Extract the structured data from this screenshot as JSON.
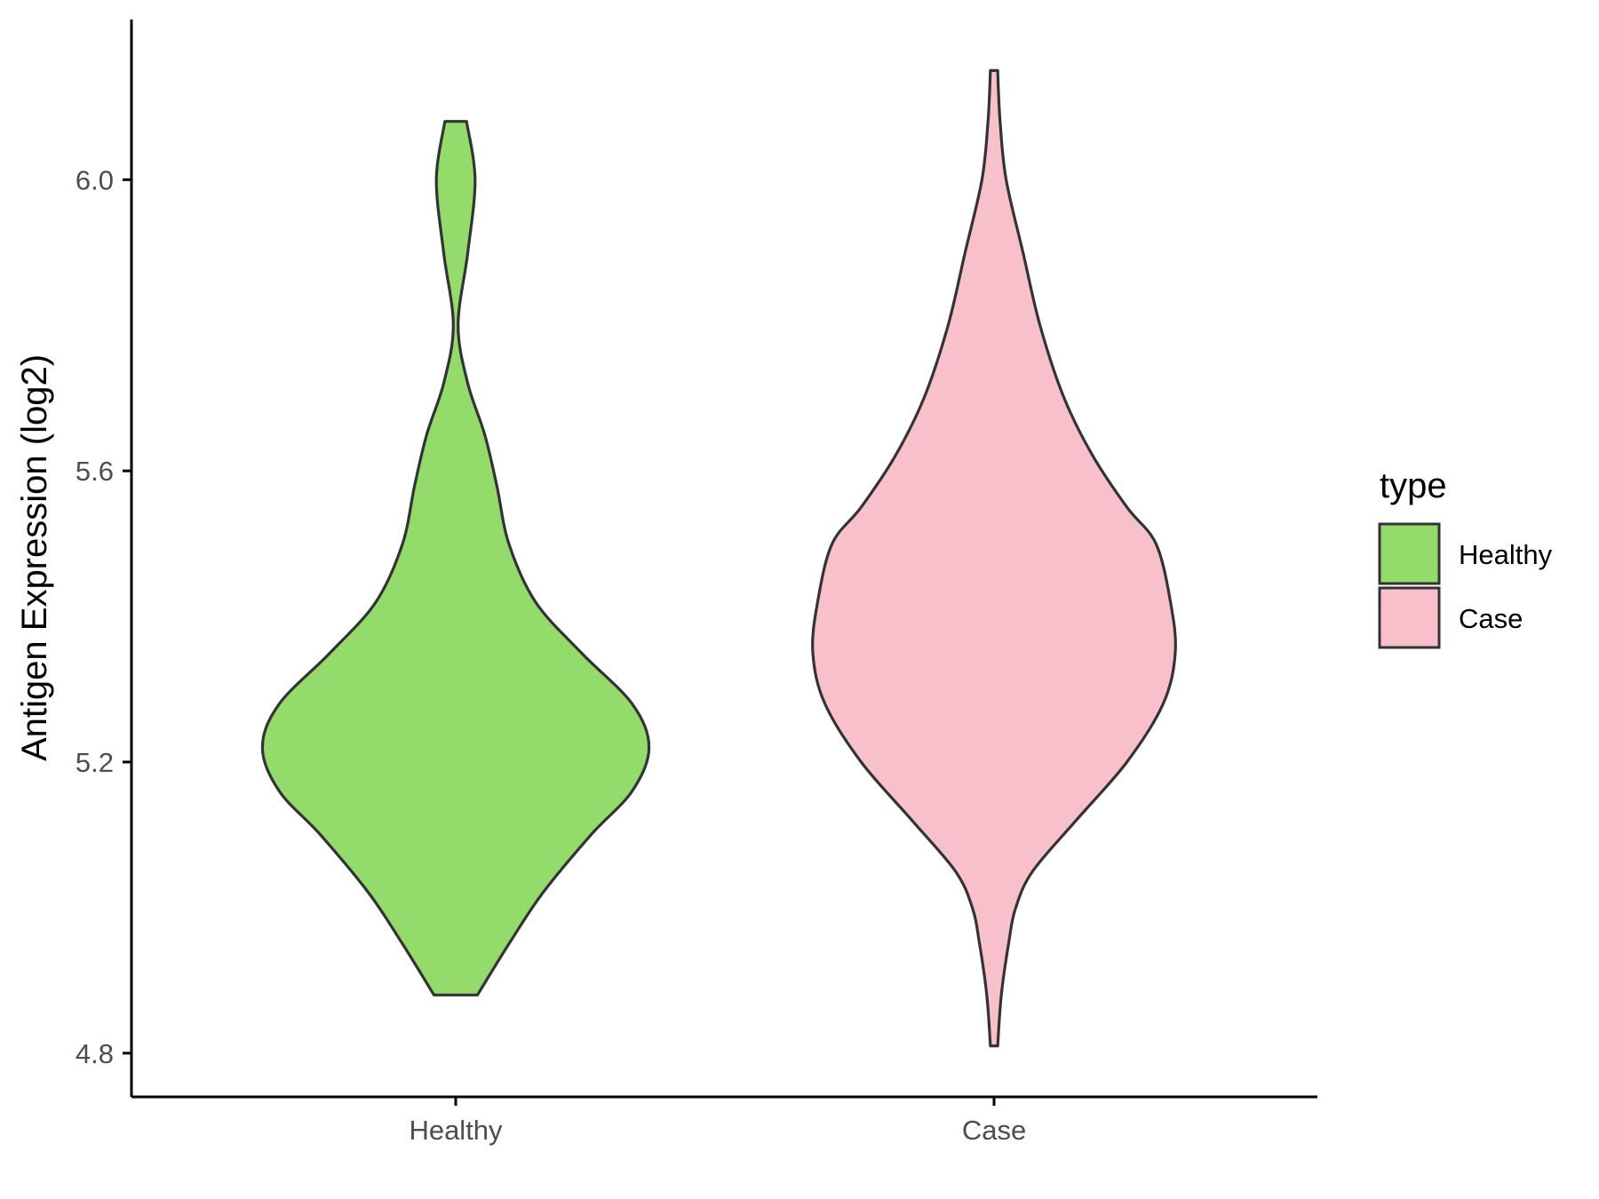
{
  "chart_data": {
    "type": "violin",
    "title": "",
    "xlabel": "",
    "ylabel": "Antigen Expression (log2)",
    "categories": [
      "Healthy",
      "Case"
    ],
    "ylim": [
      4.74,
      6.22
    ],
    "yticks": [
      4.8,
      5.2,
      5.6,
      6.0
    ],
    "ytick_labels": [
      "4.8",
      "5.2",
      "5.6",
      "6.0"
    ],
    "grid": false,
    "legend": {
      "title": "type",
      "position": "right",
      "entries": [
        "Healthy",
        "Case"
      ]
    },
    "series": [
      {
        "name": "Healthy",
        "color": "#93DB6B",
        "min": 4.88,
        "max": 6.08,
        "density_profile": [
          [
            4.88,
            0.09
          ],
          [
            4.95,
            0.22
          ],
          [
            5.02,
            0.36
          ],
          [
            5.1,
            0.56
          ],
          [
            5.16,
            0.73
          ],
          [
            5.22,
            0.8
          ],
          [
            5.28,
            0.73
          ],
          [
            5.35,
            0.52
          ],
          [
            5.42,
            0.33
          ],
          [
            5.5,
            0.22
          ],
          [
            5.58,
            0.17
          ],
          [
            5.65,
            0.12
          ],
          [
            5.72,
            0.05
          ],
          [
            5.8,
            0.01
          ],
          [
            5.9,
            -0.05
          ],
          [
            6.0,
            -0.08
          ],
          [
            6.08,
            -0.045
          ]
        ]
      },
      {
        "name": "Case",
        "color": "#F8C0CB",
        "min": 4.81,
        "max": 6.15,
        "density_profile": [
          [
            4.81,
            0.015
          ],
          [
            4.88,
            0.03
          ],
          [
            4.95,
            0.06
          ],
          [
            5.0,
            0.09
          ],
          [
            5.05,
            0.16
          ],
          [
            5.12,
            0.34
          ],
          [
            5.2,
            0.55
          ],
          [
            5.28,
            0.7
          ],
          [
            5.35,
            0.75
          ],
          [
            5.42,
            0.73
          ],
          [
            5.5,
            0.67
          ],
          [
            5.55,
            0.55
          ],
          [
            5.62,
            0.41
          ],
          [
            5.7,
            0.29
          ],
          [
            5.8,
            0.19
          ],
          [
            5.9,
            0.12
          ],
          [
            6.0,
            0.05
          ],
          [
            6.08,
            0.025
          ],
          [
            6.15,
            0.015
          ]
        ]
      }
    ]
  }
}
